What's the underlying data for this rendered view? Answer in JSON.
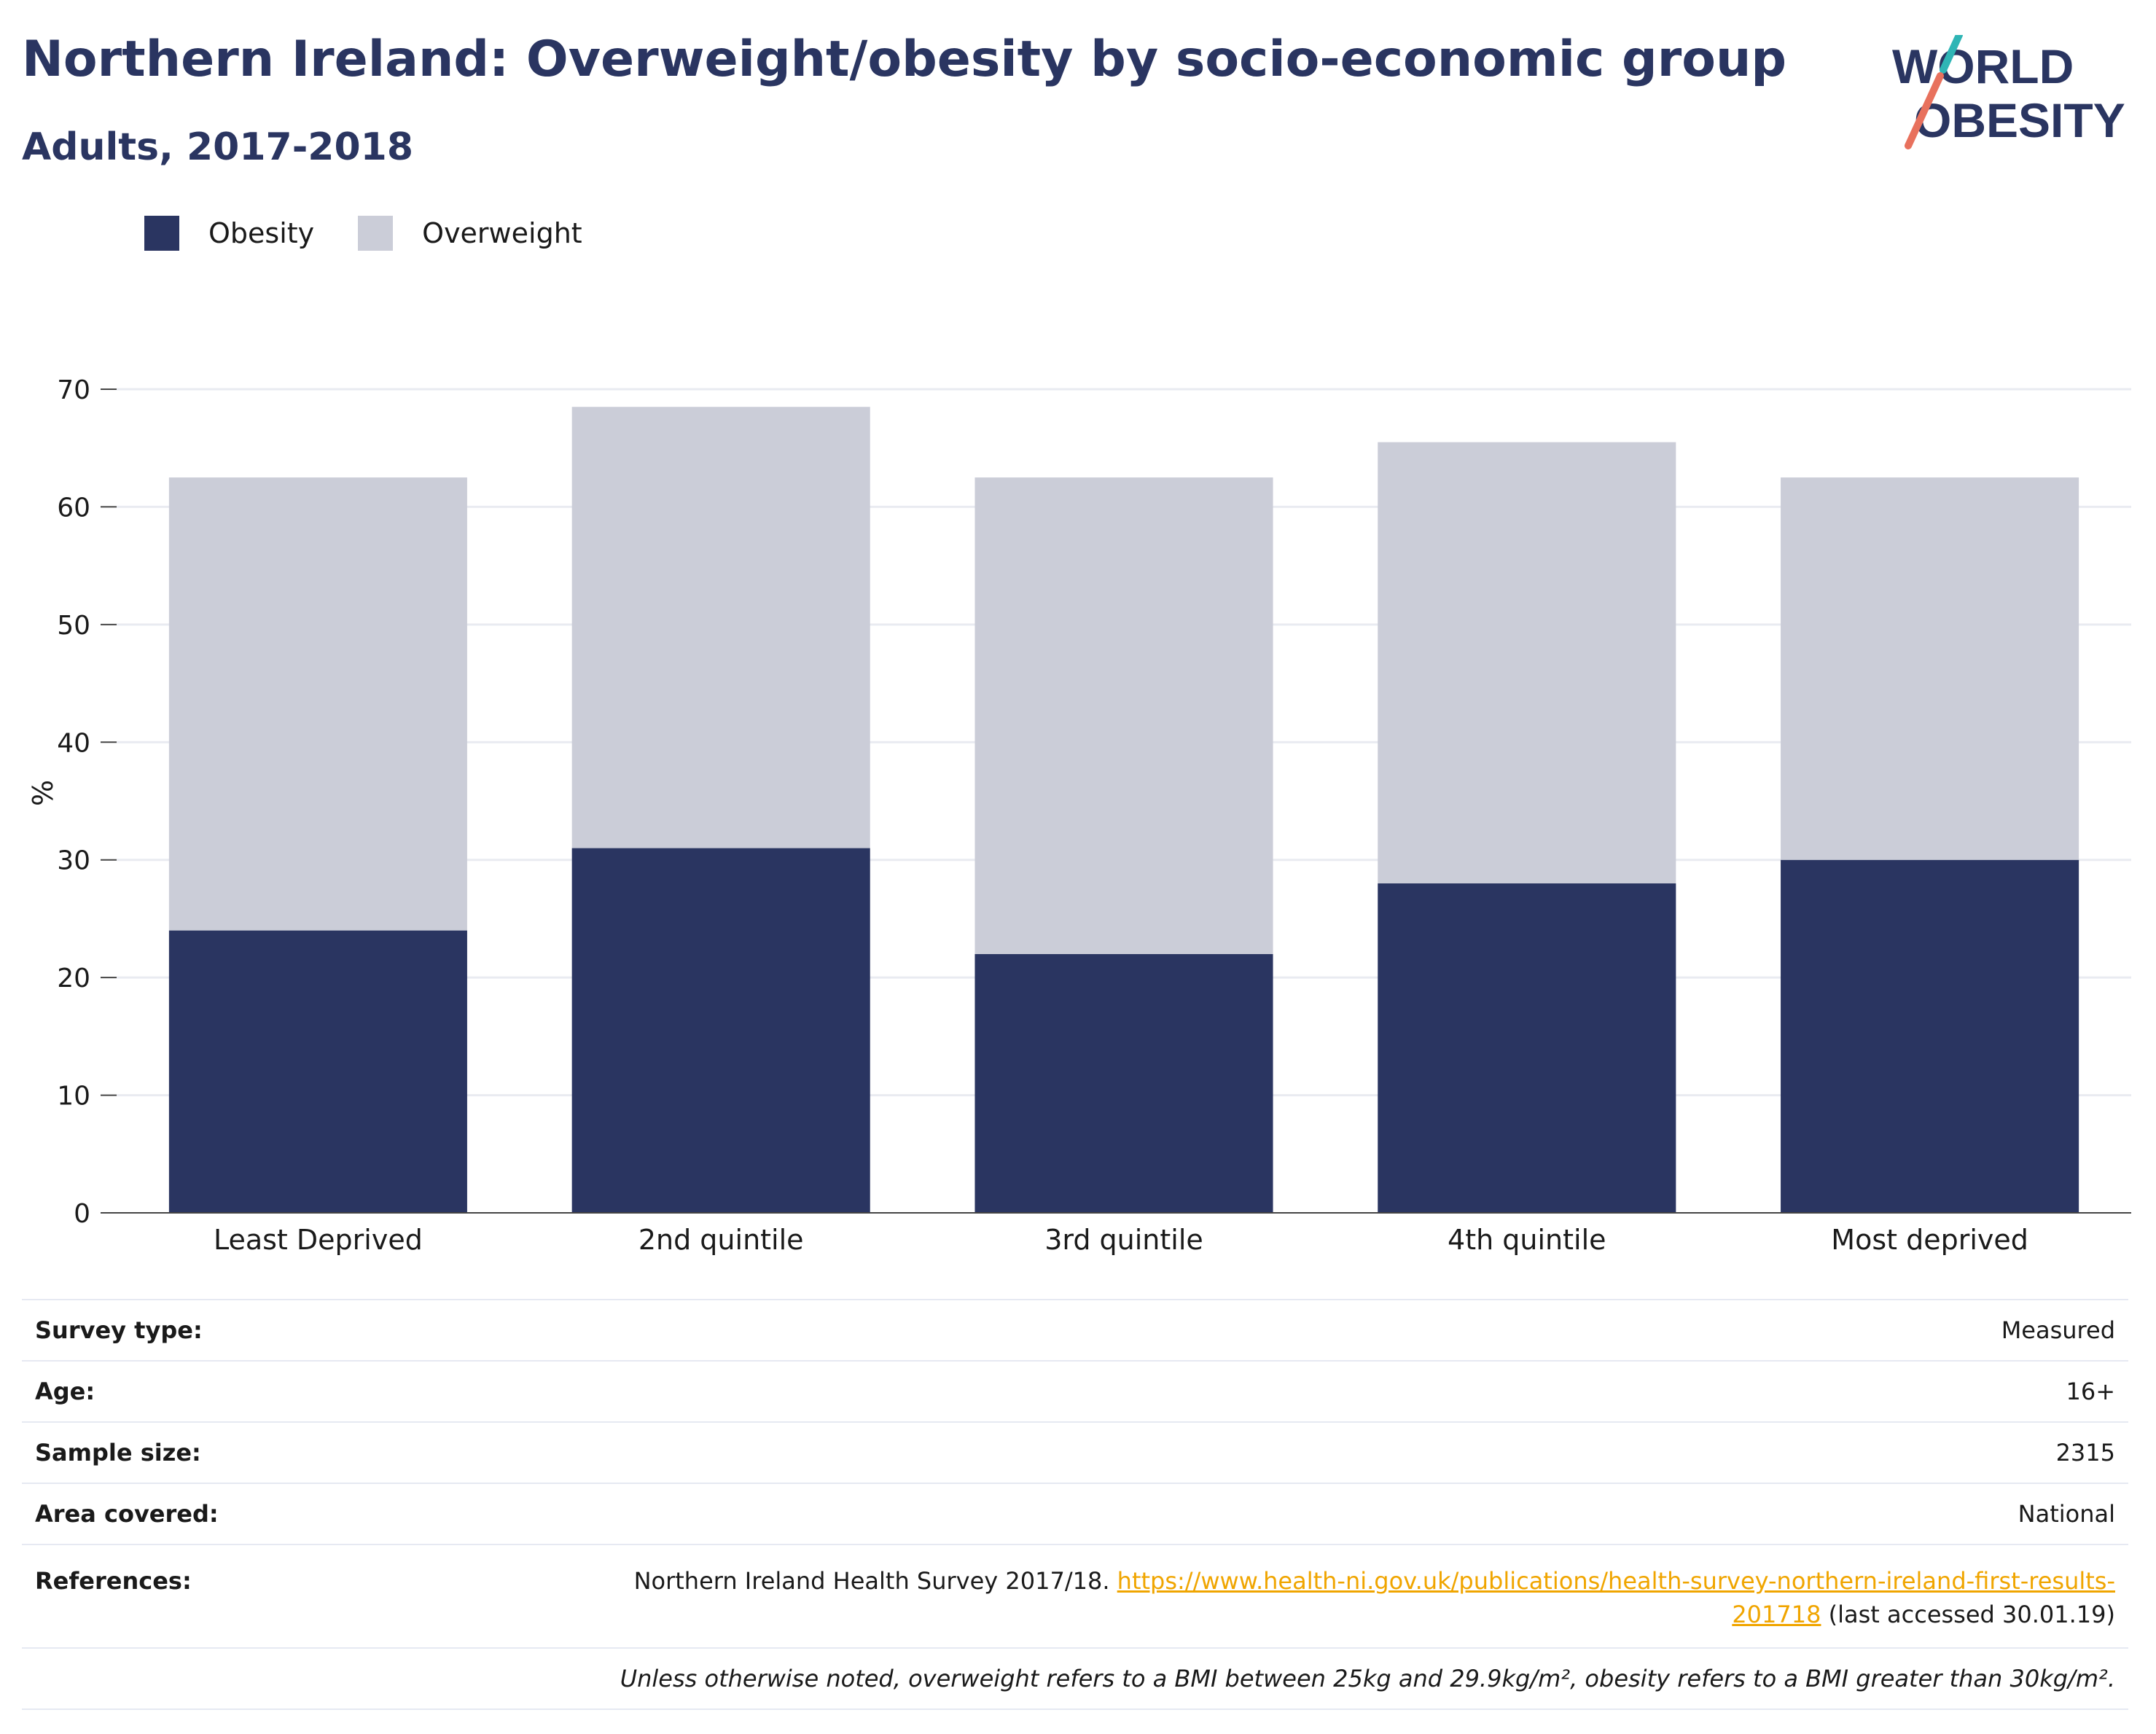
{
  "header": {
    "title": "Northern Ireland: Overweight/obesity by socio-economic group",
    "subtitle": "Adults, 2017-2018"
  },
  "logo": {
    "line1": "WORLD",
    "line2": "OBESITY"
  },
  "legend": {
    "items": [
      {
        "label": "Obesity",
        "color": "#2a3561"
      },
      {
        "label": "Overweight",
        "color": "#cbcdd8"
      }
    ]
  },
  "chart_data": {
    "type": "bar",
    "stacked": true,
    "categories": [
      "Least Deprived",
      "2nd quintile",
      "3rd quintile",
      "4th quintile",
      "Most deprived"
    ],
    "series": [
      {
        "name": "Obesity",
        "color": "#2a3561",
        "values": [
          24,
          31,
          22,
          28,
          30
        ]
      },
      {
        "name": "Overweight",
        "color": "#cbcdd8",
        "values": [
          38.5,
          37.5,
          40.5,
          37.5,
          32.5
        ]
      }
    ],
    "ylabel": "%",
    "ylim": [
      0,
      70
    ],
    "yticks": [
      0,
      10,
      20,
      30,
      40,
      50,
      60,
      70
    ],
    "grid": true,
    "legend_position": "top-left"
  },
  "info": {
    "survey_type": {
      "label": "Survey type:",
      "value": "Measured"
    },
    "age": {
      "label": "Age:",
      "value": "16+"
    },
    "sample_size": {
      "label": "Sample size:",
      "value": "2315"
    },
    "area": {
      "label": "Area covered:",
      "value": "National"
    },
    "references": {
      "label": "References:",
      "text": "Northern Ireland Health Survey 2017/18.",
      "link_part1": "https://www.health-ni.gov.uk/publications/health-survey-northern-ireland-first-results-",
      "link_part2": "201718",
      "suffix": "(last accessed 30.01.19)"
    },
    "note": "Unless otherwise noted, overweight refers to a BMI between 25kg and 29.9kg/m², obesity refers to a BMI greater than 30kg/m²."
  }
}
